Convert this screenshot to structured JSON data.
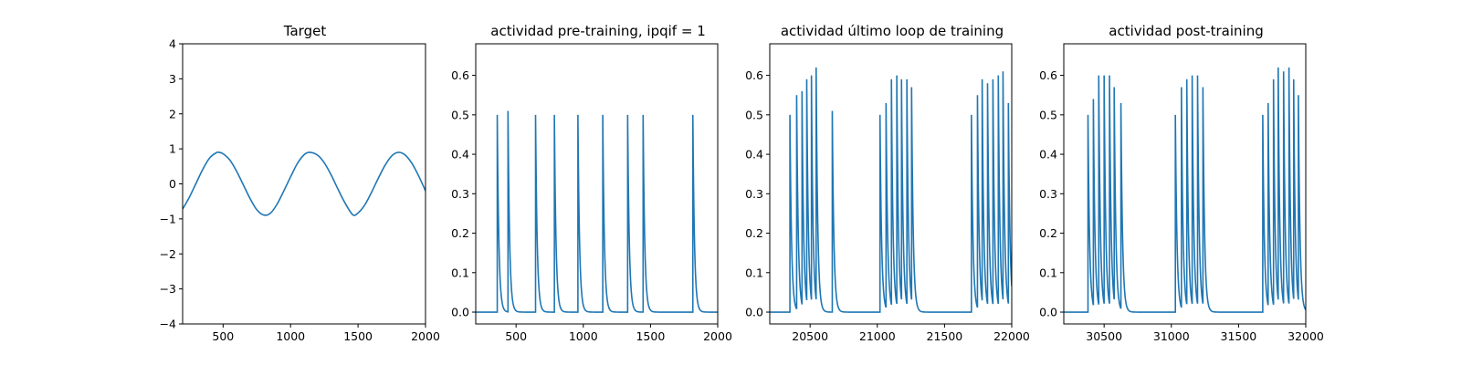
{
  "colors": {
    "line": "#1f77b4",
    "axes": "#000000",
    "background": "#ffffff"
  },
  "chart_data": [
    {
      "type": "line",
      "title": "Target",
      "xlim": [
        200,
        2000
      ],
      "ylim": [
        -4,
        4
      ],
      "xticks": [
        500,
        1000,
        1500,
        2000
      ],
      "xtick_labels": [
        "500",
        "1000",
        "1500",
        "2000"
      ],
      "yticks": [
        -4,
        -3,
        -2,
        -1,
        0,
        1,
        2,
        3,
        4
      ],
      "ytick_labels": [
        "−4",
        "−3",
        "−2",
        "−1",
        "0",
        "1",
        "2",
        "3",
        "4"
      ],
      "grid": false,
      "series": [
        {
          "values_description": "sinusoid",
          "x": [
            200,
            250,
            300,
            350,
            400,
            450,
            470,
            500,
            550,
            600,
            650,
            700,
            750,
            800,
            850,
            900,
            950,
            1000,
            1050,
            1100,
            1140,
            1200,
            1250,
            1300,
            1350,
            1400,
            1460,
            1500,
            1550,
            1600,
            1650,
            1700,
            1750,
            1800,
            1850,
            1900,
            1950,
            2000
          ],
          "y": [
            -0.72,
            -0.38,
            0.02,
            0.42,
            0.74,
            0.89,
            0.9,
            0.86,
            0.68,
            0.36,
            -0.03,
            -0.42,
            -0.74,
            -0.89,
            -0.84,
            -0.58,
            -0.2,
            0.2,
            0.58,
            0.83,
            0.9,
            0.82,
            0.6,
            0.26,
            -0.14,
            -0.52,
            -0.88,
            -0.83,
            -0.6,
            -0.24,
            0.16,
            0.53,
            0.8,
            0.9,
            0.82,
            0.58,
            0.22,
            -0.2
          ]
        }
      ]
    },
    {
      "type": "line",
      "title": "actividad pre-training, ipqif = 1",
      "xlim": [
        200,
        2000
      ],
      "ylim": [
        -0.03,
        0.68
      ],
      "xticks": [
        500,
        1000,
        1500,
        2000
      ],
      "xtick_labels": [
        "500",
        "1000",
        "1500",
        "2000"
      ],
      "yticks": [
        0.0,
        0.1,
        0.2,
        0.3,
        0.4,
        0.5,
        0.6
      ],
      "ytick_labels": [
        "0.0",
        "0.1",
        "0.2",
        "0.3",
        "0.4",
        "0.5",
        "0.6"
      ],
      "grid": false,
      "spikes": {
        "x": [
          360,
          440,
          645,
          785,
          960,
          1145,
          1330,
          1445,
          1815
        ],
        "peak": [
          0.5,
          0.51,
          0.5,
          0.5,
          0.5,
          0.5,
          0.5,
          0.5,
          0.5
        ],
        "decay": 12
      }
    },
    {
      "type": "line",
      "title": "actividad último loop de training",
      "xlim": [
        20200,
        22000
      ],
      "ylim": [
        -0.03,
        0.68
      ],
      "xticks": [
        20500,
        21000,
        21500,
        22000
      ],
      "xtick_labels": [
        "20500",
        "21000",
        "21500",
        "22000"
      ],
      "yticks": [
        0.0,
        0.1,
        0.2,
        0.3,
        0.4,
        0.5,
        0.6
      ],
      "ytick_labels": [
        "0.0",
        "0.1",
        "0.2",
        "0.3",
        "0.4",
        "0.5",
        "0.6"
      ],
      "grid": false,
      "spikes": {
        "x": [
          20350,
          20400,
          20440,
          20475,
          20510,
          20545,
          20665,
          21020,
          21065,
          21105,
          21145,
          21180,
          21220,
          21255,
          21700,
          21745,
          21780,
          21820,
          21860,
          21900,
          21935,
          21975
        ],
        "peak": [
          0.5,
          0.55,
          0.56,
          0.59,
          0.6,
          0.62,
          0.51,
          0.5,
          0.53,
          0.59,
          0.6,
          0.59,
          0.59,
          0.57,
          0.5,
          0.55,
          0.59,
          0.58,
          0.59,
          0.6,
          0.61,
          0.53
        ],
        "decay": 12
      }
    },
    {
      "type": "line",
      "title": "actividad post-training",
      "xlim": [
        30200,
        32000
      ],
      "ylim": [
        -0.03,
        0.68
      ],
      "xticks": [
        30500,
        31000,
        31500,
        32000
      ],
      "xtick_labels": [
        "30500",
        "31000",
        "31500",
        "32000"
      ],
      "yticks": [
        0.0,
        0.1,
        0.2,
        0.3,
        0.4,
        0.5,
        0.6
      ],
      "ytick_labels": [
        "0.0",
        "0.1",
        "0.2",
        "0.3",
        "0.4",
        "0.5",
        "0.6"
      ],
      "grid": false,
      "spikes": {
        "x": [
          30380,
          30420,
          30460,
          30500,
          30540,
          30575,
          30625,
          31030,
          31075,
          31115,
          31155,
          31195,
          31235,
          31680,
          31720,
          31760,
          31795,
          31835,
          31875,
          31910,
          31945
        ],
        "peak": [
          0.5,
          0.54,
          0.6,
          0.6,
          0.6,
          0.57,
          0.53,
          0.5,
          0.57,
          0.59,
          0.6,
          0.6,
          0.57,
          0.5,
          0.53,
          0.59,
          0.62,
          0.61,
          0.62,
          0.59,
          0.55
        ],
        "decay": 12
      }
    }
  ]
}
